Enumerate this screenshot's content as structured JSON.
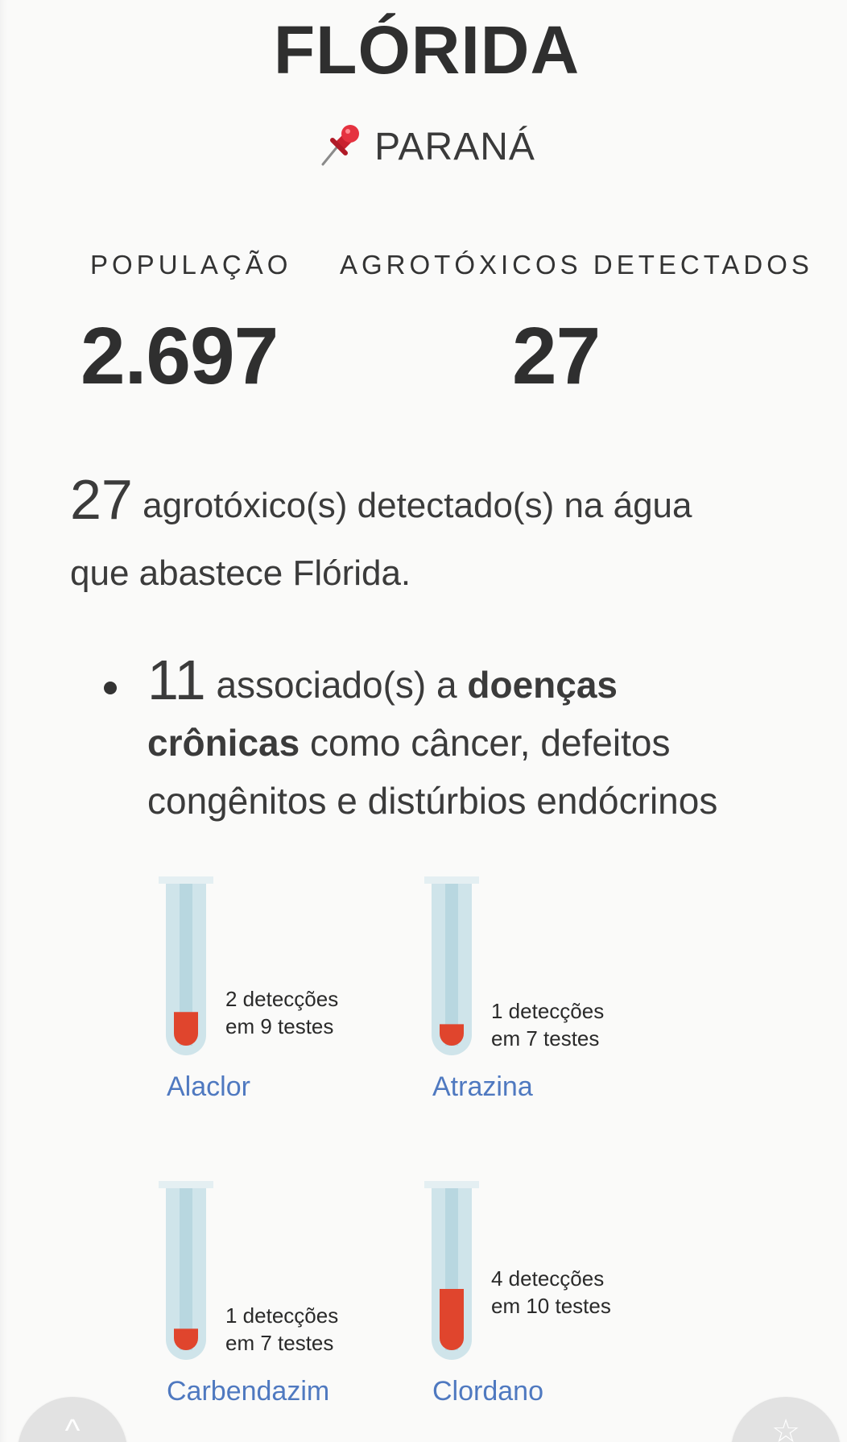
{
  "header": {
    "city": "FLÓRIDA",
    "state": "PARANÁ",
    "pin_icon": "pushpin-icon"
  },
  "stats": {
    "population_label": "POPULAÇÃO",
    "population_value": "2.697",
    "detected_label": "AGROTÓXICOS DETECTADOS",
    "detected_value": "27"
  },
  "summary": {
    "count": "27",
    "text_line1": "agrotóxico(s) detectado(s) na água",
    "text_line2": "que abastece Flórida."
  },
  "chronic": {
    "count": "11",
    "text_before": "associado(s) a",
    "bold_line1": "doenças",
    "bold_line2": "crônicas",
    "text_after": "como câncer, defeitos",
    "text_line3": "congênitos e distúrbios endócrinos"
  },
  "tube_colors": {
    "glass": "#cfe4ea",
    "glass_inner": "#a9cfd9",
    "liquid": "#e0452d",
    "name_link": "#4f79c0"
  },
  "pesticides": [
    {
      "name": "Alaclor",
      "detections_text": "2 detecções",
      "tests_text": "em 9 testes",
      "fill_fraction": 0.22
    },
    {
      "name": "Atrazina",
      "detections_text": "1 detecções",
      "tests_text": "em 7 testes",
      "fill_fraction": 0.14
    },
    {
      "name": "Carbendazim",
      "detections_text": "1 detecções",
      "tests_text": "em 7 testes",
      "fill_fraction": 0.14
    },
    {
      "name": "Clordano",
      "detections_text": "4 detecções",
      "tests_text": "em 10 testes",
      "fill_fraction": 0.4
    }
  ],
  "fabs": {
    "left_icon": "chevron-up-icon",
    "right_icon": "star-icon"
  }
}
